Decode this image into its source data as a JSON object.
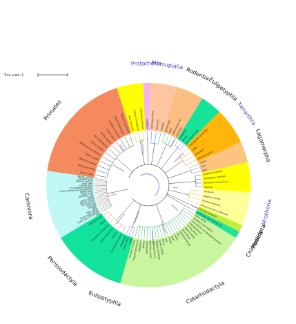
{
  "scale": {
    "label": "Tree scale: 1"
  },
  "clades": [
    {
      "id": "primates",
      "name": "Primates",
      "color": "#f58a5e",
      "a0": 188,
      "a1": 252,
      "label_angle": 218,
      "label_color": "#111111",
      "leaves": [
        "Lemur catta",
        "Tarsius syrichta",
        "Macaca mulatta",
        "Papio anubis",
        "Nomascus leucogenys",
        "Homo sapiens",
        "Pan troglodytes",
        "Gorilla gorilla",
        "Pongo abelii",
        "Callithrix jacchus",
        "Saimiri boliviensis",
        "Otolemur garnettii"
      ]
    },
    {
      "id": "glires-yellow",
      "name": "",
      "color": "#ffff00",
      "a0": 252,
      "a1": 267,
      "label_angle": 260,
      "label_color": "#111111",
      "leaves": [
        "Mus musculus",
        "Rattus norvegicus",
        "Ochotona princeps"
      ]
    },
    {
      "id": "prototheria",
      "name": "Prototheria",
      "color": "#f4b3f0",
      "a0": 267,
      "a1": 271,
      "label_angle": 269,
      "label_color": "#4545c8",
      "leaves": [
        "platypus"
      ]
    },
    {
      "id": "marsupialia",
      "name": "Marsupialia",
      "color": "#fdc6a1",
      "a0": 271,
      "a1": 286,
      "label_angle": 279,
      "label_color": "#4545c8",
      "leaves": [
        "Tasmanian devil",
        "opossum",
        "wallaby"
      ]
    },
    {
      "id": "rodentia",
      "name": "Rodentia",
      "color": "#fcbe82",
      "a0": 286,
      "a1": 302,
      "label_angle": 294,
      "label_color": "#111111",
      "leaves": [
        "guinea pig",
        "degu",
        "naked mole-rat",
        "chinchilla"
      ]
    },
    {
      "id": "eulipotyphla-1",
      "name": "Eulipotyphla",
      "color": "#16e39a",
      "a0": 302,
      "a1": 314,
      "label_angle": 308,
      "label_color": "#111111",
      "leaves": [
        "hedgehog",
        "shrew",
        "star-nosed mole"
      ]
    },
    {
      "id": "xenarthra",
      "name": "Xenarthra",
      "color": "#ffb50a",
      "a0": 314,
      "a1": 335,
      "label_angle": 324,
      "label_color": "#4545c8",
      "leaves": [
        "nine-banded armadillo",
        "sloth",
        "anteater",
        "American pika"
      ]
    },
    {
      "id": "lagomorpha",
      "name": "Lagomorpha",
      "color": "#fdc480",
      "a0": 335,
      "a1": 347,
      "label_angle": 341,
      "label_color": "#111111",
      "leaves": [
        "rabbit",
        "hare",
        "pika"
      ]
    },
    {
      "id": "sciuridae",
      "name": "",
      "color": "#ffff00",
      "a0": 347,
      "a1": 364,
      "label_angle": 356,
      "label_color": "#111111",
      "leaves": [
        "American beaver",
        "Himalayan marmot",
        "Eurasian red squirrel",
        "squirrel"
      ]
    },
    {
      "id": "afrotheria",
      "name": "Afrotheria",
      "color": "#ffff9a",
      "a0": 364,
      "a1": 383,
      "label_angle": 373,
      "label_color": "#4545c8",
      "leaves": [
        "aardvark",
        "elephant shrew",
        "Florida manatee",
        "African savanna elephant"
      ]
    },
    {
      "id": "pholidota",
      "name": "Pholidota",
      "color": "#c2ef3c",
      "a0": 383,
      "a1": 387,
      "label_angle": 385,
      "label_color": "#111111",
      "leaves": [
        "Chinese pangolin"
      ]
    },
    {
      "id": "chiroptera",
      "name": "Chiroptera",
      "color": "#22e19a",
      "a0": 387,
      "a1": 391,
      "label_angle": 389,
      "label_color": "#111111",
      "leaves": [
        "Jamaican fruit-eating bat"
      ]
    },
    {
      "id": "cetartiodactyla",
      "name": "Cetartiodactyla",
      "color": "#c9f59e",
      "a0": 391,
      "a1": 466,
      "label_angle": 422,
      "label_color": "#111111",
      "leaves": [
        "killer whale",
        "Yangtze river dolphin",
        "Indo-pacific humpbacked dolphin",
        "hippopotamus",
        "minke whale",
        "sperm whale",
        "blue whale",
        "bowhead whale",
        "pig",
        "cattle",
        "goat",
        "sheep",
        "yak",
        "bison",
        "water buffalo",
        "Tibetan antelope",
        "American bison",
        "Bactrian camel",
        "dromedary",
        "alpaca",
        "pronghorn",
        "Tragulus javanicus",
        "Chinese muntjac"
      ]
    },
    {
      "id": "eulipotyphla-2",
      "name": "Eulipotyphla",
      "color": "#16e39a",
      "a0": 466,
      "a1": 476,
      "label_angle": 471,
      "label_color": "#111111",
      "leaves": [
        "mole",
        "shrew mole",
        "hedgehog"
      ]
    },
    {
      "id": "perissodactyla",
      "name": "Perissodactyla",
      "color": "#11e39d",
      "a0": 476,
      "a1": 509,
      "label_angle": 495,
      "label_color": "#111111",
      "leaves": [
        "Przewalski's horse",
        "donkey",
        "white rhinoceros",
        "Sumatran rhinoceros",
        "horse",
        "Malayan tapir"
      ]
    },
    {
      "id": "carnivora",
      "name": "Carnivora",
      "color": "#bff8f4",
      "a0": 509,
      "a1": 548,
      "label_angle": 530,
      "label_color": "#111111",
      "leaves": [
        "dog",
        "Canis lupus familiaris",
        "Canis lupus dingo",
        "Felis catus",
        "tiger",
        "leopard",
        "cheetah",
        "Panthera leo",
        "Nasua nasua",
        "giant panda",
        "ferret",
        "domestic cat",
        "polar bear",
        "brown bear",
        "Ursus thibetanus mupinensis",
        "Eumetopias jubatus",
        "harbor seal",
        "gray seal",
        "Atlantic walrus",
        "Weddell seal",
        "Pacific walrus"
      ]
    }
  ],
  "internal_labels": [
    "Boreoeutheria",
    "Euarchontoglires",
    "Laurasiatheria",
    "Glires",
    "Scrotifera",
    "Ferungulata",
    "Atlantogenata",
    "Eulipotyphla",
    "Cetartiodactyla",
    "Carnivora",
    "Primates",
    "Perissodactyla",
    "Pholidota"
  ]
}
